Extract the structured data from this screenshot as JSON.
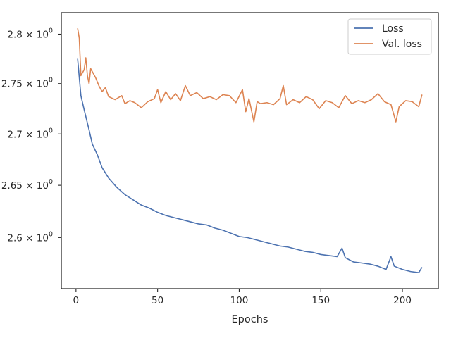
{
  "chart_data": {
    "type": "line",
    "title": "",
    "xlabel": "Epochs",
    "ylabel": "",
    "yscale": "log",
    "xlim": [
      -9,
      222
    ],
    "ylim": [
      2.552,
      2.822
    ],
    "x_ticks": [
      0,
      50,
      100,
      150,
      200
    ],
    "x_tick_labels": [
      "0",
      "50",
      "100",
      "150",
      "200"
    ],
    "y_ticks": [
      2.6,
      2.65,
      2.7,
      2.75,
      2.8
    ],
    "y_tick_labels": [
      {
        "mantissa": "2.6",
        "base": "10",
        "exp": "0"
      },
      {
        "mantissa": "2.65",
        "base": "10",
        "exp": "0"
      },
      {
        "mantissa": "2.7",
        "base": "10",
        "exp": "0"
      },
      {
        "mantissa": "2.75",
        "base": "10",
        "exp": "0"
      },
      {
        "mantissa": "2.8",
        "base": "10",
        "exp": "0"
      }
    ],
    "grid": false,
    "legend": "top-right",
    "series": [
      {
        "name": "Loss",
        "color": "#4c72b0",
        "x": [
          1,
          3,
          5,
          8,
          10,
          13,
          16,
          20,
          25,
          30,
          35,
          40,
          45,
          50,
          55,
          60,
          65,
          70,
          75,
          80,
          85,
          90,
          95,
          100,
          105,
          110,
          115,
          120,
          125,
          130,
          135,
          140,
          145,
          150,
          155,
          160,
          163,
          165,
          170,
          175,
          180,
          185,
          190,
          193,
          195,
          200,
          205,
          210,
          212
        ],
        "y": [
          2.775,
          2.738,
          2.724,
          2.704,
          2.69,
          2.68,
          2.667,
          2.657,
          2.648,
          2.641,
          2.636,
          2.631,
          2.628,
          2.624,
          2.621,
          2.619,
          2.617,
          2.615,
          2.613,
          2.612,
          2.609,
          2.607,
          2.604,
          2.601,
          2.6,
          2.598,
          2.596,
          2.594,
          2.592,
          2.591,
          2.589,
          2.587,
          2.586,
          2.584,
          2.583,
          2.582,
          2.59,
          2.581,
          2.577,
          2.576,
          2.575,
          2.573,
          2.57,
          2.582,
          2.573,
          2.57,
          2.568,
          2.567,
          2.572
        ]
      },
      {
        "name": "Val. loss",
        "color": "#dd8452",
        "x": [
          1,
          2,
          3,
          5,
          6,
          7,
          8,
          9,
          10,
          12,
          14,
          16,
          18,
          20,
          24,
          28,
          30,
          33,
          36,
          40,
          44,
          48,
          50,
          52,
          55,
          58,
          61,
          64,
          67,
          70,
          74,
          78,
          82,
          86,
          90,
          94,
          98,
          102,
          104,
          106,
          109,
          111,
          113,
          117,
          121,
          125,
          127,
          129,
          133,
          137,
          141,
          145,
          149,
          153,
          157,
          161,
          165,
          169,
          173,
          177,
          181,
          185,
          189,
          193,
          196,
          198,
          202,
          206,
          210,
          212
        ],
        "y": [
          2.806,
          2.796,
          2.758,
          2.764,
          2.776,
          2.758,
          2.75,
          2.765,
          2.762,
          2.756,
          2.748,
          2.742,
          2.746,
          2.737,
          2.734,
          2.738,
          2.73,
          2.733,
          2.731,
          2.726,
          2.732,
          2.735,
          2.744,
          2.731,
          2.742,
          2.734,
          2.74,
          2.733,
          2.748,
          2.738,
          2.741,
          2.735,
          2.737,
          2.734,
          2.739,
          2.738,
          2.731,
          2.744,
          2.722,
          2.735,
          2.712,
          2.732,
          2.73,
          2.731,
          2.729,
          2.735,
          2.748,
          2.729,
          2.734,
          2.731,
          2.737,
          2.734,
          2.725,
          2.733,
          2.731,
          2.726,
          2.738,
          2.73,
          2.733,
          2.731,
          2.734,
          2.74,
          2.732,
          2.729,
          2.712,
          2.727,
          2.733,
          2.732,
          2.727,
          2.739
        ]
      }
    ]
  }
}
